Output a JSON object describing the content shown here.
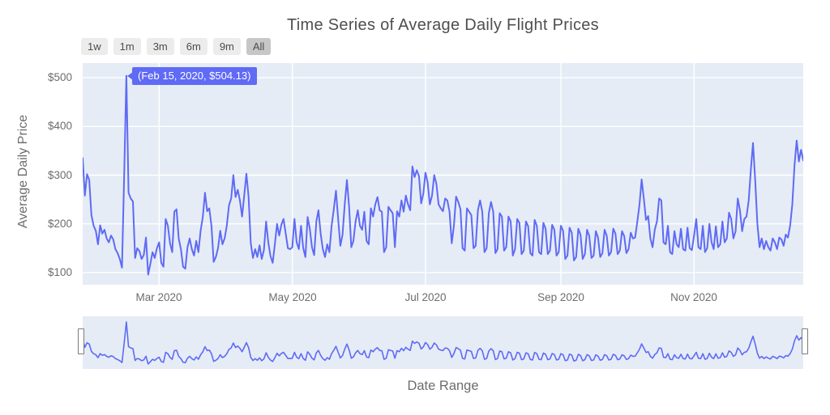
{
  "title": "Time Series of Average Daily Flight Prices",
  "controls": {
    "buttons": [
      {
        "label": "1w",
        "active": false
      },
      {
        "label": "1m",
        "active": false
      },
      {
        "label": "3m",
        "active": false
      },
      {
        "label": "6m",
        "active": false
      },
      {
        "label": "9m",
        "active": false
      },
      {
        "label": "All",
        "active": true
      }
    ]
  },
  "y_axis": {
    "title": "Average Daily Price",
    "tick_labels": [
      "$500",
      "$400",
      "$300",
      "$200",
      "$100"
    ],
    "tick_values": [
      500,
      400,
      300,
      200,
      100
    ],
    "range": [
      75,
      530
    ]
  },
  "x_axis": {
    "title": "Date Range",
    "ticks": [
      {
        "label": "Mar 2020",
        "day_index": 35
      },
      {
        "label": "May 2020",
        "day_index": 96
      },
      {
        "label": "Jul 2020",
        "day_index": 157
      },
      {
        "label": "Sep 2020",
        "day_index": 219
      },
      {
        "label": "Nov 2020",
        "day_index": 280
      }
    ]
  },
  "annotation": {
    "text": "(Feb 15, 2020, $504.13)",
    "date": "Feb 15, 2020",
    "value": 504.13,
    "point_index": 20
  },
  "colors": {
    "line": "#5f6af5",
    "plot_bg": "#e5ecf6",
    "grid": "#ffffff",
    "annotation_bg": "#5f6af5",
    "annotation_text": "#ffffff",
    "button_bg": "#ececec",
    "button_active_bg": "#c7c7c7",
    "tick_text": "#6d6d6d",
    "title_text": "#4f4f4f",
    "handle_border": "#7c7c7c",
    "handle_fill": "#ffffff"
  },
  "chart_data": {
    "type": "line",
    "title": "Time Series of Average Daily Flight Prices",
    "xlabel": "Date Range",
    "ylabel": "Average Daily Price",
    "ylim": [
      75,
      530
    ],
    "grid": true,
    "legend": false,
    "rangeslider": true,
    "x_start_date": "2020-01-26",
    "x_frequency": "daily",
    "series": [
      {
        "name": "Average Daily Price",
        "values": [
          335,
          258,
          302,
          290,
          218,
          196,
          186,
          158,
          197,
          180,
          188,
          170,
          162,
          176,
          168,
          148,
          140,
          128,
          110,
          300,
          504.13,
          264,
          252,
          246,
          130,
          150,
          144,
          128,
          136,
          172,
          96,
          118,
          142,
          130,
          150,
          162,
          120,
          112,
          210,
          196,
          160,
          142,
          225,
          230,
          170,
          148,
          112,
          108,
          152,
          170,
          148,
          135,
          165,
          142,
          186,
          214,
          264,
          226,
          232,
          196,
          122,
          132,
          150,
          186,
          158,
          170,
          196,
          238,
          252,
          300,
          255,
          270,
          248,
          215,
          260,
          303,
          255,
          160,
          130,
          148,
          132,
          156,
          128,
          146,
          205,
          162,
          134,
          120,
          158,
          200,
          176,
          198,
          210,
          180,
          150,
          148,
          152,
          210,
          162,
          148,
          196,
          150,
          132,
          214,
          190,
          152,
          136,
          205,
          228,
          180,
          148,
          132,
          158,
          142,
          196,
          230,
          268,
          210,
          155,
          178,
          240,
          290,
          235,
          152,
          165,
          205,
          228,
          196,
          188,
          225,
          165,
          158,
          232,
          215,
          240,
          255,
          228,
          225,
          142,
          152,
          235,
          228,
          222,
          152,
          226,
          215,
          248,
          225,
          258,
          240,
          228,
          318,
          296,
          310,
          298,
          242,
          262,
          305,
          285,
          240,
          258,
          300,
          282,
          240,
          232,
          226,
          252,
          248,
          225,
          160,
          196,
          256,
          245,
          230,
          150,
          145,
          232,
          225,
          218,
          150,
          155,
          228,
          248,
          225,
          142,
          150,
          222,
          245,
          225,
          140,
          148,
          222,
          215,
          145,
          152,
          215,
          205,
          135,
          148,
          210,
          202,
          138,
          145,
          205,
          195,
          140,
          135,
          208,
          196,
          142,
          138,
          202,
          190,
          138,
          145,
          198,
          188,
          135,
          142,
          196,
          186,
          128,
          135,
          192,
          182,
          125,
          132,
          190,
          178,
          128,
          138,
          188,
          175,
          130,
          135,
          185,
          172,
          132,
          140,
          188,
          176,
          135,
          142,
          190,
          180,
          138,
          145,
          185,
          175,
          140,
          148,
          182,
          170,
          172,
          205,
          240,
          291,
          252,
          208,
          216,
          170,
          152,
          188,
          205,
          252,
          248,
          162,
          158,
          196,
          142,
          138,
          185,
          158,
          152,
          190,
          148,
          145,
          192,
          150,
          146,
          176,
          210,
          152,
          148,
          196,
          142,
          150,
          200,
          162,
          148,
          195,
          152,
          158,
          205,
          162,
          170,
          223,
          210,
          170,
          185,
          252,
          228,
          185,
          210,
          215,
          248,
          310,
          366,
          290,
          200,
          152,
          170,
          148,
          165,
          152,
          145,
          170,
          162,
          148,
          172,
          168,
          155,
          178,
          172,
          196,
          240,
          320,
          371,
          328,
          352,
          330
        ]
      }
    ]
  }
}
